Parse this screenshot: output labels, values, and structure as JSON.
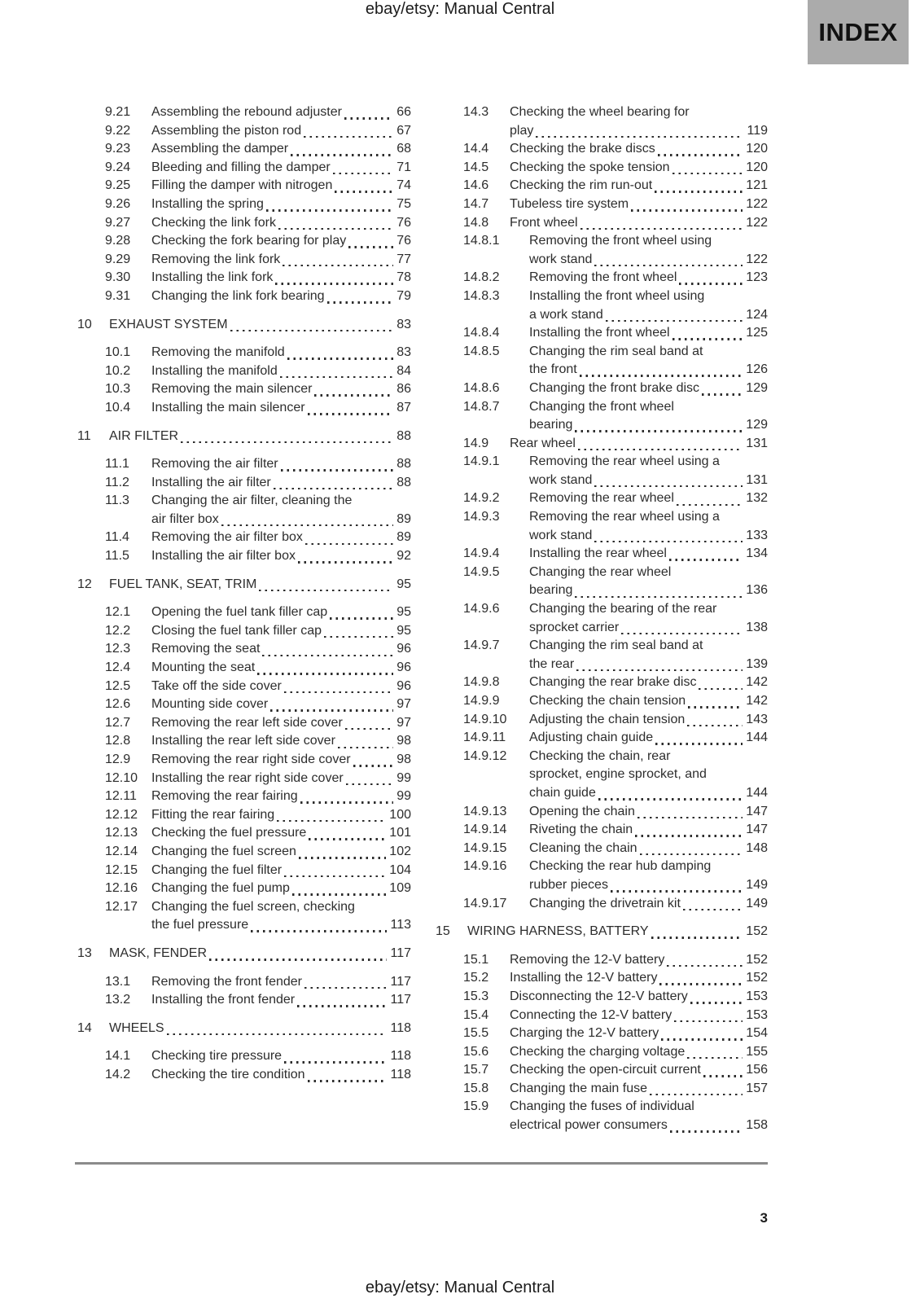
{
  "header": {
    "doc_title": "ebay/etsy: Manual Central",
    "index_label": "INDEX"
  },
  "footer": {
    "page_number": "3",
    "doc_title": "ebay/etsy: Manual Central"
  },
  "colors": {
    "index_box_bg": "#ababab",
    "text": "#2d2d2d",
    "divider": "#8b8b8b"
  },
  "toc": {
    "left": [
      {
        "type": "sub",
        "num": "9.21",
        "lines": [
          "Assembling the rebound adjuster"
        ],
        "page": "66"
      },
      {
        "type": "sub",
        "num": "9.22",
        "lines": [
          "Assembling the piston rod"
        ],
        "page": "67"
      },
      {
        "type": "sub",
        "num": "9.23",
        "lines": [
          "Assembling the damper"
        ],
        "page": "68"
      },
      {
        "type": "sub",
        "num": "9.24",
        "lines": [
          "Bleeding and filling the damper"
        ],
        "page": "71"
      },
      {
        "type": "sub",
        "num": "9.25",
        "lines": [
          "Filling the damper with nitrogen"
        ],
        "page": "74"
      },
      {
        "type": "sub",
        "num": "9.26",
        "lines": [
          "Installing the spring"
        ],
        "page": "75"
      },
      {
        "type": "sub",
        "num": "9.27",
        "lines": [
          "Checking the link fork"
        ],
        "page": "76"
      },
      {
        "type": "sub",
        "num": "9.28",
        "lines": [
          "Checking the fork bearing for play"
        ],
        "page": "76"
      },
      {
        "type": "sub",
        "num": "9.29",
        "lines": [
          "Removing the link fork"
        ],
        "page": "77"
      },
      {
        "type": "sub",
        "num": "9.30",
        "lines": [
          "Installing the link fork"
        ],
        "page": "78"
      },
      {
        "type": "sub",
        "num": "9.31",
        "lines": [
          "Changing the link fork bearing"
        ],
        "page": "79"
      },
      {
        "type": "chapter",
        "num": "10",
        "lines": [
          "EXHAUST SYSTEM"
        ],
        "page": "83"
      },
      {
        "type": "sub",
        "num": "10.1",
        "lines": [
          "Removing the manifold"
        ],
        "page": "83"
      },
      {
        "type": "sub",
        "num": "10.2",
        "lines": [
          "Installing the manifold"
        ],
        "page": "84"
      },
      {
        "type": "sub",
        "num": "10.3",
        "lines": [
          "Removing the main silencer"
        ],
        "page": "86"
      },
      {
        "type": "sub",
        "num": "10.4",
        "lines": [
          "Installing the main silencer"
        ],
        "page": "87"
      },
      {
        "type": "chapter",
        "num": "11",
        "lines": [
          "AIR FILTER"
        ],
        "page": "88"
      },
      {
        "type": "sub",
        "num": "11.1",
        "lines": [
          "Removing the air filter"
        ],
        "page": "88"
      },
      {
        "type": "sub",
        "num": "11.2",
        "lines": [
          "Installing the air filter"
        ],
        "page": "88"
      },
      {
        "type": "sub",
        "num": "11.3",
        "lines": [
          "Changing the air filter, cleaning the",
          "air filter box"
        ],
        "page": "89"
      },
      {
        "type": "sub",
        "num": "11.4",
        "lines": [
          "Removing the air filter box"
        ],
        "page": "89"
      },
      {
        "type": "sub",
        "num": "11.5",
        "lines": [
          "Installing the air filter box"
        ],
        "page": "92"
      },
      {
        "type": "chapter",
        "num": "12",
        "lines": [
          "FUEL TANK, SEAT, TRIM"
        ],
        "page": "95"
      },
      {
        "type": "sub",
        "num": "12.1",
        "lines": [
          "Opening the fuel tank filler cap"
        ],
        "page": "95"
      },
      {
        "type": "sub",
        "num": "12.2",
        "lines": [
          "Closing the fuel tank filler cap"
        ],
        "page": "95"
      },
      {
        "type": "sub",
        "num": "12.3",
        "lines": [
          "Removing the seat"
        ],
        "page": "96"
      },
      {
        "type": "sub",
        "num": "12.4",
        "lines": [
          "Mounting the seat"
        ],
        "page": "96"
      },
      {
        "type": "sub",
        "num": "12.5",
        "lines": [
          "Take off the side cover"
        ],
        "page": "96"
      },
      {
        "type": "sub",
        "num": "12.6",
        "lines": [
          "Mounting side cover"
        ],
        "page": "97"
      },
      {
        "type": "sub",
        "num": "12.7",
        "lines": [
          "Removing the rear left side cover"
        ],
        "page": "97"
      },
      {
        "type": "sub",
        "num": "12.8",
        "lines": [
          "Installing the rear left side cover"
        ],
        "page": "98"
      },
      {
        "type": "sub",
        "num": "12.9",
        "lines": [
          "Removing the rear right side cover"
        ],
        "page": "98"
      },
      {
        "type": "sub",
        "num": "12.10",
        "lines": [
          "Installing the rear right side cover"
        ],
        "page": "99"
      },
      {
        "type": "sub",
        "num": "12.11",
        "lines": [
          "Removing the rear fairing"
        ],
        "page": "99"
      },
      {
        "type": "sub",
        "num": "12.12",
        "lines": [
          "Fitting the rear fairing"
        ],
        "page": "100"
      },
      {
        "type": "sub",
        "num": "12.13",
        "lines": [
          "Checking the fuel pressure"
        ],
        "page": "101"
      },
      {
        "type": "sub",
        "num": "12.14",
        "lines": [
          "Changing the fuel screen"
        ],
        "page": "102"
      },
      {
        "type": "sub",
        "num": "12.15",
        "lines": [
          "Changing the fuel filter"
        ],
        "page": "104"
      },
      {
        "type": "sub",
        "num": "12.16",
        "lines": [
          "Changing the fuel pump"
        ],
        "page": "109"
      },
      {
        "type": "sub",
        "num": "12.17",
        "lines": [
          "Changing the fuel screen, checking",
          "the fuel pressure"
        ],
        "page": "113"
      },
      {
        "type": "chapter",
        "num": "13",
        "lines": [
          "MASK, FENDER"
        ],
        "page": "117"
      },
      {
        "type": "sub",
        "num": "13.1",
        "lines": [
          "Removing the front fender"
        ],
        "page": "117"
      },
      {
        "type": "sub",
        "num": "13.2",
        "lines": [
          "Installing the front fender"
        ],
        "page": "117"
      },
      {
        "type": "chapter",
        "num": "14",
        "lines": [
          "WHEELS"
        ],
        "page": "118"
      },
      {
        "type": "sub",
        "num": "14.1",
        "lines": [
          "Checking tire pressure"
        ],
        "page": "118"
      },
      {
        "type": "sub",
        "num": "14.2",
        "lines": [
          "Checking the tire condition"
        ],
        "page": "118"
      }
    ],
    "right": [
      {
        "type": "sub",
        "num": "14.3",
        "lines": [
          "Checking the wheel bearing for",
          "play"
        ],
        "page": "119"
      },
      {
        "type": "sub",
        "num": "14.4",
        "lines": [
          "Checking the brake discs"
        ],
        "page": "120"
      },
      {
        "type": "sub",
        "num": "14.5",
        "lines": [
          "Checking the spoke tension"
        ],
        "page": "120"
      },
      {
        "type": "sub",
        "num": "14.6",
        "lines": [
          "Checking the rim run-out"
        ],
        "page": "121"
      },
      {
        "type": "sub",
        "num": "14.7",
        "lines": [
          "Tubeless tire system"
        ],
        "page": "122"
      },
      {
        "type": "sub",
        "num": "14.8",
        "lines": [
          "Front wheel"
        ],
        "page": "122"
      },
      {
        "type": "subsub",
        "num": "14.8.1",
        "lines": [
          "Removing the front wheel using",
          "work stand"
        ],
        "page": "122"
      },
      {
        "type": "subsub",
        "num": "14.8.2",
        "lines": [
          "Removing the front wheel"
        ],
        "page": "123"
      },
      {
        "type": "subsub",
        "num": "14.8.3",
        "lines": [
          "Installing the front wheel using",
          "a work stand"
        ],
        "page": "124"
      },
      {
        "type": "subsub",
        "num": "14.8.4",
        "lines": [
          "Installing the front wheel"
        ],
        "page": "125"
      },
      {
        "type": "subsub",
        "num": "14.8.5",
        "lines": [
          "Changing the rim seal band at",
          "the front"
        ],
        "page": "126"
      },
      {
        "type": "subsub",
        "num": "14.8.6",
        "lines": [
          "Changing the front brake disc"
        ],
        "page": "129"
      },
      {
        "type": "subsub",
        "num": "14.8.7",
        "lines": [
          "Changing the front wheel",
          "bearing"
        ],
        "page": "129"
      },
      {
        "type": "sub",
        "num": "14.9",
        "lines": [
          "Rear wheel"
        ],
        "page": "131"
      },
      {
        "type": "subsub",
        "num": "14.9.1",
        "lines": [
          "Removing the rear wheel using a",
          "work stand"
        ],
        "page": "131"
      },
      {
        "type": "subsub",
        "num": "14.9.2",
        "lines": [
          "Removing the rear wheel"
        ],
        "page": "132"
      },
      {
        "type": "subsub",
        "num": "14.9.3",
        "lines": [
          "Removing the rear wheel using a",
          "work stand"
        ],
        "page": "133"
      },
      {
        "type": "subsub",
        "num": "14.9.4",
        "lines": [
          "Installing the rear wheel"
        ],
        "page": "134"
      },
      {
        "type": "subsub",
        "num": "14.9.5",
        "lines": [
          "Changing the rear wheel",
          "bearing"
        ],
        "page": "136"
      },
      {
        "type": "subsub",
        "num": "14.9.6",
        "lines": [
          "Changing the bearing of the rear",
          "sprocket carrier"
        ],
        "page": "138"
      },
      {
        "type": "subsub",
        "num": "14.9.7",
        "lines": [
          "Changing the rim seal band at",
          "the rear"
        ],
        "page": "139"
      },
      {
        "type": "subsub",
        "num": "14.9.8",
        "lines": [
          "Changing the rear brake disc"
        ],
        "page": "142"
      },
      {
        "type": "subsub",
        "num": "14.9.9",
        "lines": [
          "Checking the chain tension"
        ],
        "page": "142"
      },
      {
        "type": "subsub",
        "num": "14.9.10",
        "lines": [
          "Adjusting the chain tension"
        ],
        "page": "143"
      },
      {
        "type": "subsub",
        "num": "14.9.11",
        "lines": [
          "Adjusting chain guide"
        ],
        "page": "144"
      },
      {
        "type": "subsub",
        "num": "14.9.12",
        "lines": [
          "Checking the chain, rear",
          "sprocket, engine sprocket, and",
          "chain guide"
        ],
        "page": "144"
      },
      {
        "type": "subsub",
        "num": "14.9.13",
        "lines": [
          "Opening the chain"
        ],
        "page": "147"
      },
      {
        "type": "subsub",
        "num": "14.9.14",
        "lines": [
          "Riveting the chain"
        ],
        "page": "147"
      },
      {
        "type": "subsub",
        "num": "14.9.15",
        "lines": [
          "Cleaning the chain"
        ],
        "page": "148"
      },
      {
        "type": "subsub",
        "num": "14.9.16",
        "lines": [
          "Checking the rear hub damping",
          "rubber pieces"
        ],
        "page": "149"
      },
      {
        "type": "subsub",
        "num": "14.9.17",
        "lines": [
          "Changing the drivetrain kit"
        ],
        "page": "149"
      },
      {
        "type": "chapter",
        "num": "15",
        "lines": [
          "WIRING HARNESS, BATTERY"
        ],
        "page": "152"
      },
      {
        "type": "sub",
        "num": "15.1",
        "lines": [
          "Removing the 12-V battery"
        ],
        "page": "152"
      },
      {
        "type": "sub",
        "num": "15.2",
        "lines": [
          "Installing the 12-V battery"
        ],
        "page": "152"
      },
      {
        "type": "sub",
        "num": "15.3",
        "lines": [
          "Disconnecting the 12-V battery"
        ],
        "page": "153"
      },
      {
        "type": "sub",
        "num": "15.4",
        "lines": [
          "Connecting the 12-V battery"
        ],
        "page": "153"
      },
      {
        "type": "sub",
        "num": "15.5",
        "lines": [
          "Charging the 12-V battery"
        ],
        "page": "154"
      },
      {
        "type": "sub",
        "num": "15.6",
        "lines": [
          "Checking the charging voltage"
        ],
        "page": "155"
      },
      {
        "type": "sub",
        "num": "15.7",
        "lines": [
          "Checking the open-circuit current"
        ],
        "page": "156"
      },
      {
        "type": "sub",
        "num": "15.8",
        "lines": [
          "Changing the main fuse"
        ],
        "page": "157"
      },
      {
        "type": "sub",
        "num": "15.9",
        "lines": [
          "Changing the fuses of individual",
          "electrical power consumers"
        ],
        "page": "158"
      }
    ]
  }
}
